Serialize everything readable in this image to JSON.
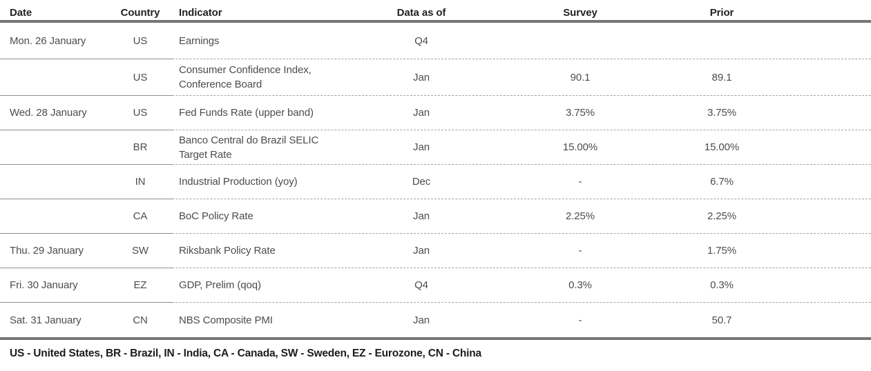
{
  "table": {
    "columns": [
      {
        "key": "date",
        "label": "Date"
      },
      {
        "key": "country",
        "label": "Country"
      },
      {
        "key": "indicator",
        "label": "Indicator"
      },
      {
        "key": "data_as_of",
        "label": "Data as of"
      },
      {
        "key": "survey",
        "label": "Survey"
      },
      {
        "key": "prior",
        "label": "Prior"
      }
    ],
    "rows": [
      {
        "date": "Mon. 26 January",
        "country": "US",
        "indicator": "Earnings",
        "data_as_of": "Q4",
        "survey": "",
        "prior": ""
      },
      {
        "date": "",
        "country": "US",
        "indicator": "Consumer Confidence Index, Conference Board",
        "data_as_of": "Jan",
        "survey": "90.1",
        "prior": "89.1"
      },
      {
        "date": "Wed. 28 January",
        "country": "US",
        "indicator": "Fed Funds Rate (upper band)",
        "data_as_of": "Jan",
        "survey": "3.75%",
        "prior": "3.75%"
      },
      {
        "date": "",
        "country": "BR",
        "indicator": "Banco Central do Brazil SELIC Target Rate",
        "data_as_of": "Jan",
        "survey": "15.00%",
        "prior": "15.00%"
      },
      {
        "date": "",
        "country": "IN",
        "indicator": "Industrial Production (yoy)",
        "data_as_of": "Dec",
        "survey": "-",
        "prior": "6.7%"
      },
      {
        "date": "",
        "country": "CA",
        "indicator": "BoC Policy Rate",
        "data_as_of": "Jan",
        "survey": "2.25%",
        "prior": "2.25%"
      },
      {
        "date": "Thu. 29 January",
        "country": "SW",
        "indicator": "Riksbank Policy Rate",
        "data_as_of": "Jan",
        "survey": "-",
        "prior": "1.75%"
      },
      {
        "date": "Fri. 30 January",
        "country": "EZ",
        "indicator": "GDP, Prelim (qoq)",
        "data_as_of": "Q4",
        "survey": "0.3%",
        "prior": "0.3%"
      },
      {
        "date": "Sat. 31 January",
        "country": "CN",
        "indicator": "NBS Composite PMI",
        "data_as_of": "Jan",
        "survey": "-",
        "prior": "50.7"
      }
    ]
  },
  "footer": {
    "legend": "US - United States, BR - Brazil, IN - India, CA - Canada, SW - Sweden, EZ - Eurozone, CN - China"
  },
  "colors": {
    "rule_heavy": "#757575",
    "rule_dashed": "#a2a2a2",
    "rule_solid_left": "#8e8e8e",
    "header_text": "#222222",
    "body_text": "#4c4c4c",
    "footer_text": "#1c1c1c",
    "background": "#ffffff"
  }
}
